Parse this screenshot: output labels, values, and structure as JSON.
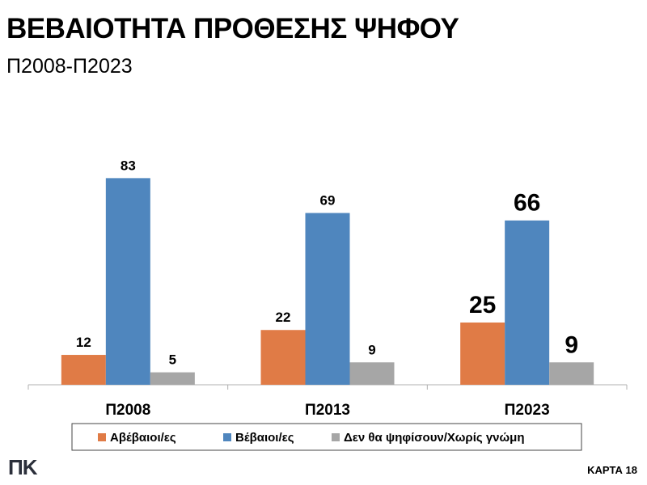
{
  "header": {
    "title": "ΒΕΒΑΙΟΤΗΤΑ ΠΡΟΘΕΣΗΣ ΨΗΦΟΥ",
    "subtitle": "Π2008-Π2023"
  },
  "footer": {
    "logo_text": "ΠΚ",
    "code": "ΚΑΡΤΑ 18"
  },
  "colors": {
    "orange": "#E07B46",
    "blue": "#4F86BE",
    "gray": "#A6A6A6",
    "axis": "#B0B0B0",
    "legend_border": "#444444"
  },
  "chart_data": {
    "type": "bar",
    "title": "ΒΕΒΑΙΟΤΗΤΑ ΠΡΟΘΕΣΗΣ ΨΗΦΟΥ",
    "subtitle": "Π2008-Π2023",
    "categories": [
      "Π2008",
      "Π2013",
      "Π2023"
    ],
    "series": [
      {
        "name": "Αβέβαιοι/ες",
        "values": [
          12,
          22,
          25
        ],
        "color": "#E07B46"
      },
      {
        "name": "Βέβαιοι/ες",
        "values": [
          83,
          69,
          66
        ],
        "color": "#4F86BE"
      },
      {
        "name": "Δεν θα ψηφίσουν/Χωρίς γνώμη",
        "values": [
          5,
          9,
          9
        ],
        "color": "#A6A6A6"
      }
    ],
    "xlabel": "",
    "ylabel": "",
    "ylim": [
      0,
      90
    ],
    "grid": false,
    "legend": "bottom",
    "emphasized_category": "Π2023"
  }
}
